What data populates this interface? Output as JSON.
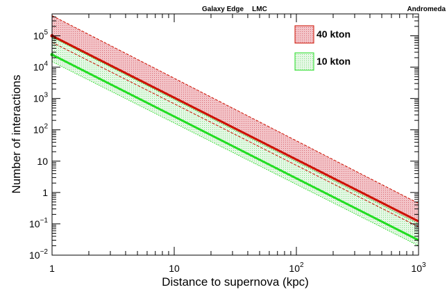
{
  "chart_data": {
    "type": "area",
    "xlabel": "Distance to supernova (kpc)",
    "ylabel": "Number of interactions",
    "x_scale": "log",
    "y_scale": "log",
    "xlim": [
      1,
      1000
    ],
    "ylim": [
      0.01,
      500000
    ],
    "x_ticks": [
      {
        "value": 1,
        "base": "1",
        "exp": ""
      },
      {
        "value": 10,
        "base": "10",
        "exp": ""
      },
      {
        "value": 100,
        "base": "10",
        "exp": "2"
      },
      {
        "value": 1000,
        "base": "10",
        "exp": "3"
      }
    ],
    "y_ticks": [
      {
        "value": 0.01,
        "base": "10",
        "exp": "−2"
      },
      {
        "value": 0.1,
        "base": "10",
        "exp": "−1"
      },
      {
        "value": 1,
        "base": "1",
        "exp": ""
      },
      {
        "value": 10,
        "base": "10",
        "exp": ""
      },
      {
        "value": 100,
        "base": "10",
        "exp": "2"
      },
      {
        "value": 1000,
        "base": "10",
        "exp": "3"
      },
      {
        "value": 10000,
        "base": "10",
        "exp": "4"
      },
      {
        "value": 100000,
        "base": "10",
        "exp": "5"
      }
    ],
    "top_annotations": [
      {
        "label": "Galaxy Edge",
        "x": 25
      },
      {
        "label": "LMC",
        "x": 50
      },
      {
        "label": "Andromeda",
        "x": 780
      }
    ],
    "series": [
      {
        "name": "40 kton",
        "color": "#cc1100",
        "band_color": "#e8a0a8",
        "x": [
          1,
          1000
        ],
        "central": [
          100000,
          0.12
        ],
        "upper": [
          440000,
          0.45
        ],
        "lower": [
          62000,
          0.08
        ]
      },
      {
        "name": "10 kton",
        "color": "#22dd22",
        "band_color": "#b8ecb8",
        "x": [
          1,
          1000
        ],
        "central": [
          25000,
          0.03
        ],
        "upper": [
          90000,
          0.1
        ],
        "lower": [
          15000,
          0.02
        ]
      }
    ],
    "legend_position": "top-right",
    "grid": false
  }
}
